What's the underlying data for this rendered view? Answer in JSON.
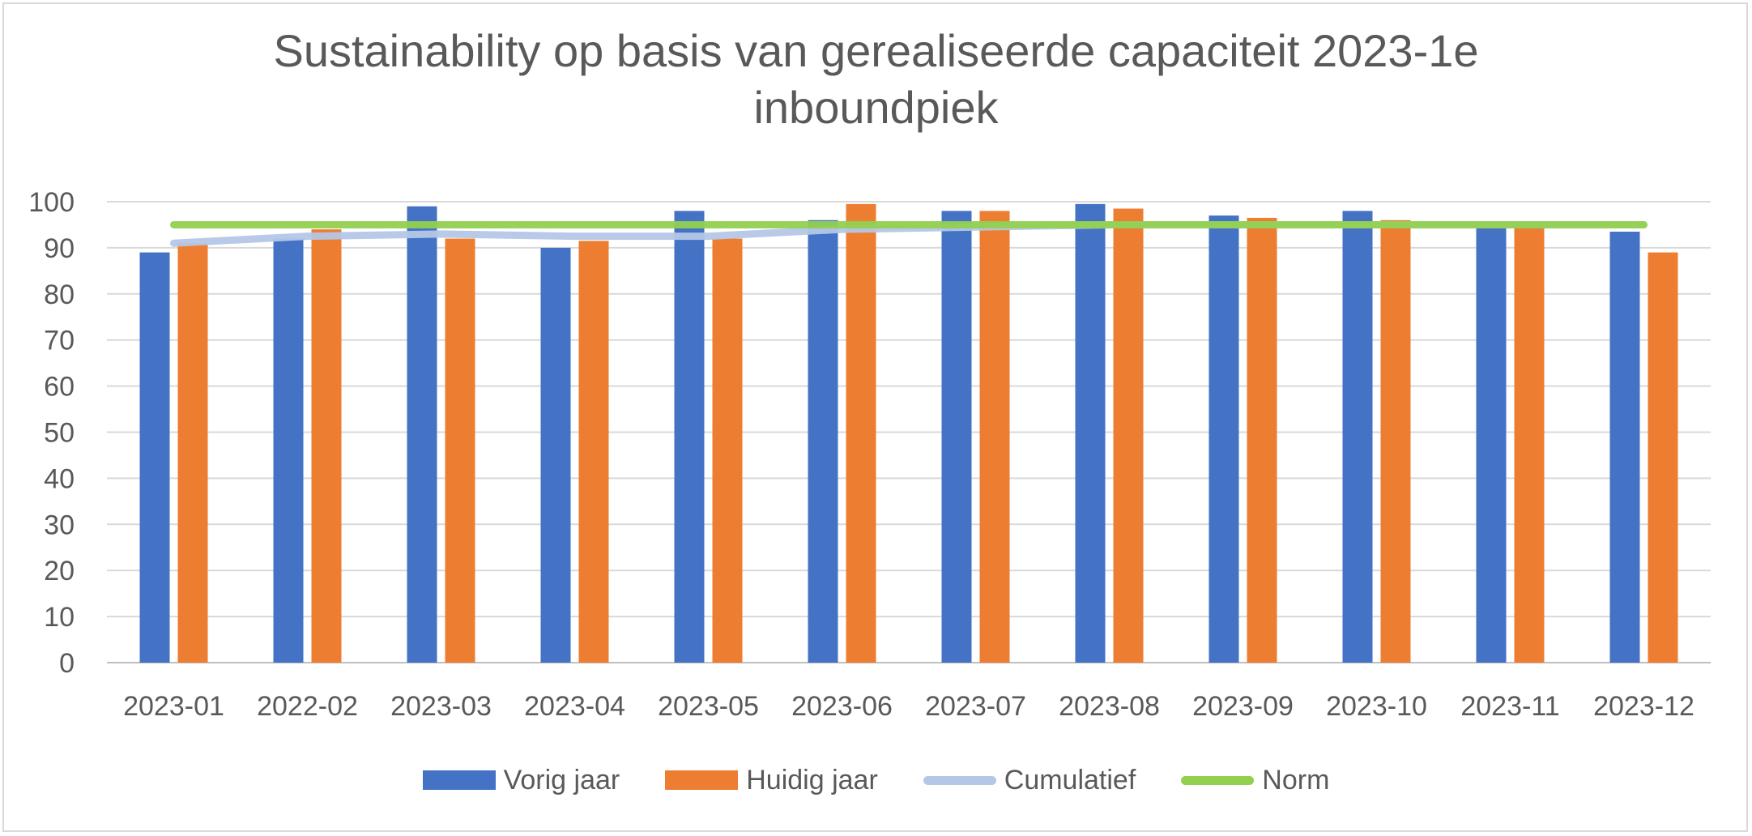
{
  "chart_data": {
    "type": "bar",
    "title": "Sustainability op basis van gerealiseerde capaciteit 2023-1e inboundpiek",
    "title_lines": [
      "Sustainability op basis van gerealiseerde capaciteit 2023-1e",
      "inboundpiek"
    ],
    "categories": [
      "2023-01",
      "2022-02",
      "2023-03",
      "2023-04",
      "2023-05",
      "2023-06",
      "2023-07",
      "2023-08",
      "2023-09",
      "2023-10",
      "2023-11",
      "2023-12"
    ],
    "ylim": [
      0,
      100
    ],
    "yticks": [
      0,
      10,
      20,
      30,
      40,
      50,
      60,
      70,
      80,
      90,
      100
    ],
    "grid": true,
    "legend_position": "bottom",
    "series": [
      {
        "name": "Vorig jaar",
        "kind": "bar",
        "color": "#4472c4",
        "values": [
          89,
          92,
          99,
          90,
          98,
          96,
          98,
          99.5,
          97,
          98,
          95,
          93.5
        ]
      },
      {
        "name": "Huidig jaar",
        "kind": "bar",
        "color": "#ed7d31",
        "values": [
          91,
          94,
          92,
          91.5,
          92,
          99.5,
          98,
          98.5,
          96.5,
          96,
          95,
          89
        ]
      },
      {
        "name": "Cumulatief",
        "kind": "line",
        "color": "#b4c7e7",
        "values": [
          91,
          92.5,
          93,
          92.5,
          92.5,
          94,
          94.5,
          95,
          95,
          95,
          95,
          95
        ]
      },
      {
        "name": "Norm",
        "kind": "line",
        "color": "#92d050",
        "values": [
          95,
          95,
          95,
          95,
          95,
          95,
          95,
          95,
          95,
          95,
          95,
          95
        ]
      }
    ]
  }
}
